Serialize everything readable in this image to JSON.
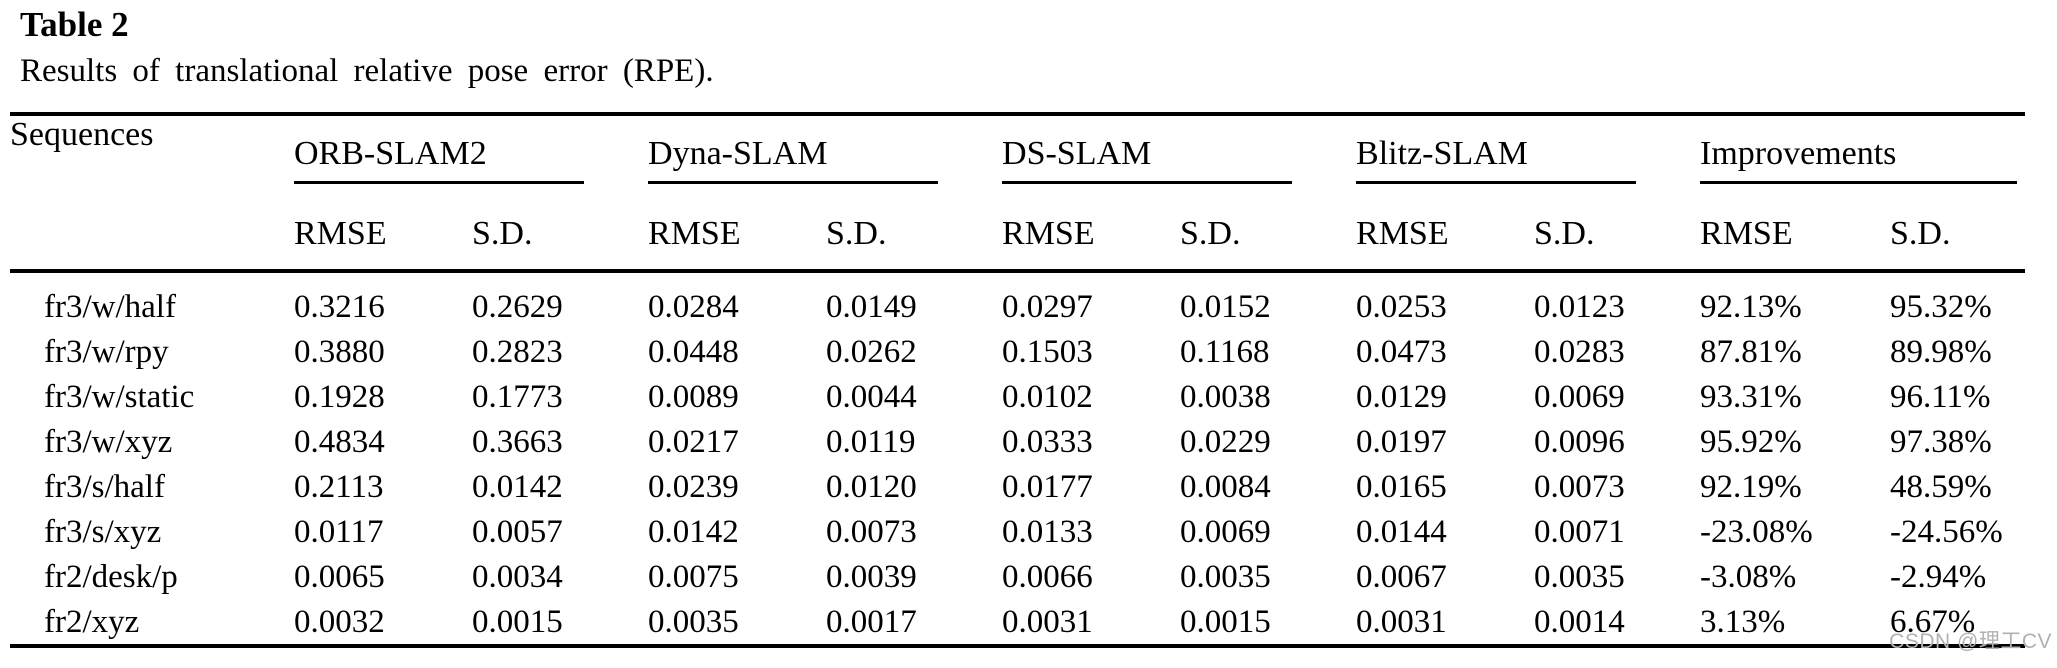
{
  "header": {
    "title": "Table 2",
    "subtitle": "Results of translational relative pose error (RPE)."
  },
  "table": {
    "sequences_header": "Sequences",
    "groups": [
      "ORB-SLAM2",
      "Dyna-SLAM",
      "DS-SLAM",
      "Blitz-SLAM",
      "Improvements"
    ],
    "subheaders": [
      "RMSE",
      "S.D."
    ],
    "rows": [
      {
        "sequence": "fr3/w/half",
        "cells": [
          {
            "v": "0.3216",
            "bold": false
          },
          {
            "v": "0.2629",
            "bold": false
          },
          {
            "v": "0.0284",
            "bold": false
          },
          {
            "v": "0.0149",
            "bold": false
          },
          {
            "v": "0.0297",
            "bold": false
          },
          {
            "v": "0.0152",
            "bold": false
          },
          {
            "v": "0.0253",
            "bold": true
          },
          {
            "v": "0.0123",
            "bold": true
          },
          {
            "v": "92.13%",
            "bold": true
          },
          {
            "v": "95.32%",
            "bold": true
          }
        ]
      },
      {
        "sequence": "fr3/w/rpy",
        "cells": [
          {
            "v": "0.3880",
            "bold": false
          },
          {
            "v": "0.2823",
            "bold": false
          },
          {
            "v": "0.0448",
            "bold": true
          },
          {
            "v": "0.0262",
            "bold": true
          },
          {
            "v": "0.1503",
            "bold": false
          },
          {
            "v": "0.1168",
            "bold": false
          },
          {
            "v": "0.0473",
            "bold": false
          },
          {
            "v": "0.0283",
            "bold": false
          },
          {
            "v": "87.81%",
            "bold": true
          },
          {
            "v": "89.98%",
            "bold": true
          }
        ]
      },
      {
        "sequence": "fr3/w/static",
        "cells": [
          {
            "v": "0.1928",
            "bold": false
          },
          {
            "v": "0.1773",
            "bold": false
          },
          {
            "v": "0.0089",
            "bold": true
          },
          {
            "v": "0.0044",
            "bold": false
          },
          {
            "v": "0.0102",
            "bold": false
          },
          {
            "v": "0.0038",
            "bold": true
          },
          {
            "v": "0.0129",
            "bold": false
          },
          {
            "v": "0.0069",
            "bold": false
          },
          {
            "v": "93.31%",
            "bold": true
          },
          {
            "v": "96.11%",
            "bold": true
          }
        ]
      },
      {
        "sequence": "fr3/w/xyz",
        "cells": [
          {
            "v": "0.4834",
            "bold": false
          },
          {
            "v": "0.3663",
            "bold": false
          },
          {
            "v": "0.0217",
            "bold": false
          },
          {
            "v": "0.0119",
            "bold": false
          },
          {
            "v": "0.0333",
            "bold": false
          },
          {
            "v": "0.0229",
            "bold": false
          },
          {
            "v": "0.0197",
            "bold": true
          },
          {
            "v": "0.0096",
            "bold": true
          },
          {
            "v": "95.92%",
            "bold": true
          },
          {
            "v": "97.38%",
            "bold": true
          }
        ]
      },
      {
        "sequence": "fr3/s/half",
        "cells": [
          {
            "v": "0.2113",
            "bold": false
          },
          {
            "v": "0.0142",
            "bold": false
          },
          {
            "v": "0.0239",
            "bold": false
          },
          {
            "v": "0.0120",
            "bold": false
          },
          {
            "v": "0.0177",
            "bold": false
          },
          {
            "v": "0.0084",
            "bold": false
          },
          {
            "v": "0.0165",
            "bold": true
          },
          {
            "v": "0.0073",
            "bold": true
          },
          {
            "v": "92.19%",
            "bold": true
          },
          {
            "v": "48.59%",
            "bold": true
          }
        ]
      },
      {
        "sequence": "fr3/s/xyz",
        "cells": [
          {
            "v": "0.0117",
            "bold": true
          },
          {
            "v": "0.0057",
            "bold": true
          },
          {
            "v": "0.0142",
            "bold": false
          },
          {
            "v": "0.0073",
            "bold": false
          },
          {
            "v": "0.0133",
            "bold": false
          },
          {
            "v": "0.0069",
            "bold": false
          },
          {
            "v": "0.0144",
            "bold": false
          },
          {
            "v": "0.0071",
            "bold": false
          },
          {
            "v": "-23.08%",
            "bold": true
          },
          {
            "v": "-24.56%",
            "bold": true
          }
        ]
      },
      {
        "sequence": "fr2/desk/p",
        "cells": [
          {
            "v": "0.0065",
            "bold": true
          },
          {
            "v": "0.0034",
            "bold": true
          },
          {
            "v": "0.0075",
            "bold": false
          },
          {
            "v": "0.0039",
            "bold": false
          },
          {
            "v": "0.0066",
            "bold": false
          },
          {
            "v": "0.0035",
            "bold": false
          },
          {
            "v": "0.0067",
            "bold": false
          },
          {
            "v": "0.0035",
            "bold": false
          },
          {
            "v": "-3.08%",
            "bold": true
          },
          {
            "v": "-2.94%",
            "bold": true
          }
        ]
      },
      {
        "sequence": "fr2/xyz",
        "cells": [
          {
            "v": "0.0032",
            "bold": false
          },
          {
            "v": "0.0015",
            "bold": false
          },
          {
            "v": "0.0035",
            "bold": false
          },
          {
            "v": "0.0017",
            "bold": false
          },
          {
            "v": "0.0031",
            "bold": true
          },
          {
            "v": "0.0015",
            "bold": false
          },
          {
            "v": "0.0031",
            "bold": true
          },
          {
            "v": "0.0014",
            "bold": true
          },
          {
            "v": "3.13%",
            "bold": true
          },
          {
            "v": "6.67%",
            "bold": true
          }
        ]
      }
    ]
  },
  "watermark": {
    "text": "CSDN @理工CV"
  },
  "colors": {
    "text": "#000000",
    "watermark": "#b3b0b0"
  }
}
